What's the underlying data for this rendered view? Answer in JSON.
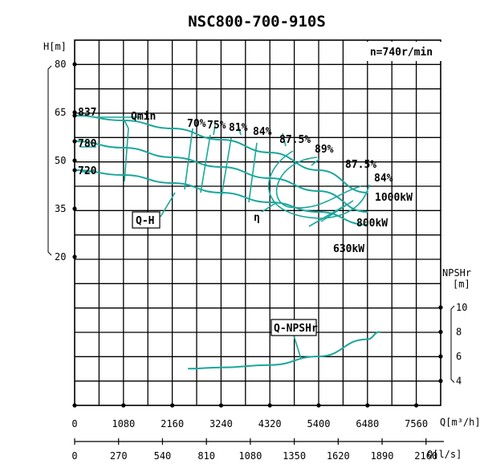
{
  "chart_data": {
    "type": "line",
    "title": "NSC800-700-910S",
    "speed_label": "n=740r/min",
    "y_left": {
      "unit_label": "H[m]",
      "ticks": [
        80,
        65,
        50,
        35,
        20
      ]
    },
    "y_right": {
      "unit_label_top": "NPSHr",
      "unit_label_bottom": "[m]",
      "ticks": [
        10,
        8,
        6,
        4
      ]
    },
    "x_axis_1": {
      "unit_label": "Q[m³/h]",
      "ticks": [
        0,
        1080,
        2160,
        3240,
        4320,
        5400,
        6480,
        7560
      ]
    },
    "x_axis_2": {
      "unit_label": "Q[l/s]",
      "ticks": [
        0,
        270,
        540,
        810,
        1080,
        1350,
        1620,
        1890,
        2160
      ]
    },
    "impeller_labels": [
      "837",
      "780",
      "720"
    ],
    "series": [
      {
        "name": "837",
        "x": [
          0,
          1080,
          2160,
          3240,
          4320,
          5400,
          6480
        ],
        "y": [
          64,
          62.5,
          60,
          56.5,
          52.5,
          47,
          40
        ]
      },
      {
        "name": "780",
        "x": [
          0,
          1080,
          2160,
          3240,
          4320,
          5400,
          6480
        ],
        "y": [
          56,
          54,
          51,
          48,
          44.5,
          40.5,
          34
        ]
      },
      {
        "name": "720",
        "x": [
          0,
          1080,
          2160,
          3240,
          4320,
          5400,
          6480
        ],
        "y": [
          47,
          45.5,
          43,
          40,
          37,
          34,
          30
        ]
      },
      {
        "name": "Q-NPSHr",
        "x": [
          2520,
          3240,
          4320,
          5400,
          6480,
          6750
        ],
        "y": [
          5.0,
          5.1,
          5.3,
          6.0,
          7.4,
          8.0
        ]
      }
    ],
    "efficiency_labels": [
      "70%",
      "75%",
      "81%",
      "84%",
      "87.5%",
      "89%",
      "87.5%",
      "84%"
    ],
    "power_labels": [
      "1000kW",
      "800kW",
      "630kW"
    ],
    "annotations": [
      "Qmin",
      "Q-H",
      "η",
      "Q-NPSHr"
    ]
  }
}
